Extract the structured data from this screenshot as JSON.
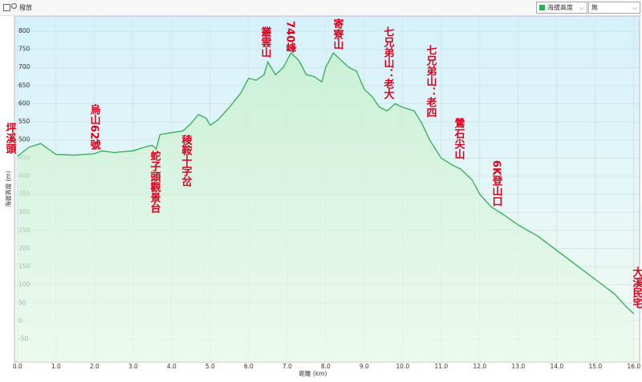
{
  "toolbar": {
    "play": "撥放",
    "metric": "海拔高度",
    "option": "無"
  },
  "chart_data": {
    "type": "line",
    "xlabel": "距離 (km)",
    "ylabel": "海拔高度 (m)",
    "x": [
      0,
      0.3,
      0.6,
      0.8,
      1.0,
      1.5,
      2.0,
      2.2,
      2.5,
      3.0,
      3.3,
      3.5,
      3.6,
      3.7,
      4.0,
      4.3,
      4.5,
      4.7,
      4.9,
      5.0,
      5.2,
      5.5,
      5.8,
      6.0,
      6.2,
      6.4,
      6.5,
      6.7,
      6.9,
      7.1,
      7.3,
      7.5,
      7.7,
      7.9,
      8.0,
      8.2,
      8.4,
      8.6,
      8.8,
      9.0,
      9.2,
      9.4,
      9.6,
      9.8,
      10.0,
      10.3,
      10.5,
      10.7,
      11.0,
      11.3,
      11.5,
      11.8,
      12.0,
      12.3,
      12.6,
      13.0,
      13.5,
      14.0,
      14.5,
      15.0,
      15.5,
      15.8,
      16.0
    ],
    "series": [
      {
        "name": "海拔高度",
        "color": "#2fae55",
        "values": [
          455,
          480,
          490,
          475,
          460,
          458,
          462,
          470,
          465,
          470,
          480,
          485,
          475,
          515,
          520,
          525,
          545,
          570,
          560,
          540,
          555,
          590,
          630,
          670,
          665,
          680,
          715,
          680,
          700,
          740,
          720,
          680,
          675,
          660,
          700,
          740,
          720,
          700,
          690,
          640,
          620,
          590,
          580,
          600,
          590,
          580,
          545,
          500,
          450,
          430,
          420,
          390,
          350,
          315,
          295,
          265,
          235,
          195,
          155,
          115,
          75,
          40,
          20
        ]
      }
    ],
    "annotations": [
      "坪溪頭",
      "烏山62號",
      "蛇子頭觀景台",
      "稜鞍十字岔",
      "叢雲山",
      "740峰",
      "寄寮山",
      "七兄弟山：老大",
      "七兄弟山：老四",
      "鶯石尖山",
      "6K登山口",
      "大溪民宅"
    ],
    "xlim": [
      -0.08,
      16.15
    ],
    "ylim": [
      -113,
      842
    ],
    "xticks": [
      {
        "value": 0,
        "label": "0.0"
      },
      {
        "value": 1,
        "label": "1.0"
      },
      {
        "value": 2,
        "label": "2.0"
      },
      {
        "value": 3,
        "label": "3.0"
      },
      {
        "value": 4,
        "label": "4.0"
      },
      {
        "value": 5,
        "label": "5.0"
      },
      {
        "value": 6,
        "label": "6.0"
      },
      {
        "value": 7,
        "label": "7.0"
      },
      {
        "value": 8,
        "label": "8.0"
      },
      {
        "value": 9,
        "label": "9.0"
      },
      {
        "value": 10,
        "label": "10.0"
      },
      {
        "value": 11,
        "label": "11.0"
      },
      {
        "value": 12,
        "label": "12.0"
      },
      {
        "value": 13,
        "label": "13.0"
      },
      {
        "value": 14,
        "label": "14.0"
      },
      {
        "value": 15,
        "label": "15.0"
      },
      {
        "value": 16,
        "label": "16.0"
      }
    ],
    "yticks": [
      800,
      750,
      700,
      650,
      600,
      550,
      500,
      450,
      400,
      350,
      300,
      250,
      200,
      150,
      100,
      50,
      0,
      -50
    ],
    "grid": true
  }
}
